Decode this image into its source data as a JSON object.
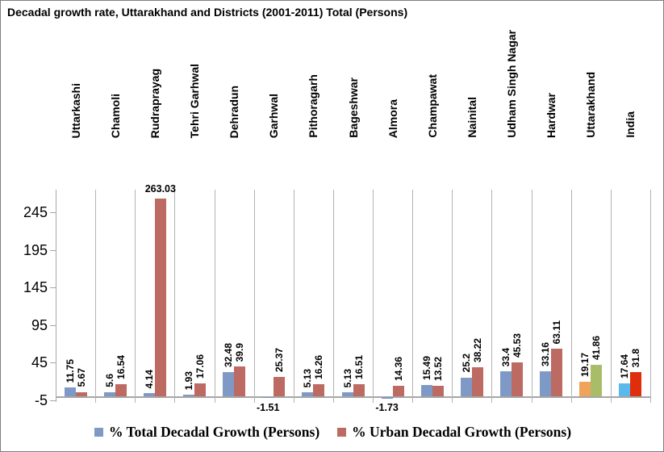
{
  "title": "Decadal growth rate, Uttarakhand and Districts (2001-2011) Total (Persons)",
  "chart_data": {
    "type": "bar",
    "title": "Decadal growth rate, Uttarakhand and Districts (2001-2011) Total (Persons)",
    "categories": [
      "Uttarkashi",
      "Chamoli",
      "Rudraprayag",
      "Tehri Garhwal",
      "Dehradun",
      "Garhwal",
      "Pithoragarh",
      "Bageshwar",
      "Almora",
      "Champawat",
      "Nainital",
      "Udham Singh Nagar",
      "Hardwar",
      "Uttarakhand",
      "India"
    ],
    "series": [
      {
        "name": "% Total Decadal Growth (Persons)",
        "color": "#7e99c6",
        "values": [
          11.75,
          5.6,
          4.14,
          1.93,
          32.48,
          -1.51,
          5.13,
          5.13,
          -1.73,
          15.49,
          25.2,
          33.4,
          33.16,
          19.17,
          17.64
        ]
      },
      {
        "name": "% Urban Decadal Growth (Persons)",
        "color": "#bc6a62",
        "values": [
          5.67,
          16.54,
          263.03,
          17.06,
          39.9,
          25.37,
          16.26,
          16.51,
          14.36,
          13.52,
          38.22,
          45.53,
          63.11,
          41.86,
          31.8
        ]
      }
    ],
    "point_colors": {
      "13": [
        "#f2a35b",
        "#a9bd68"
      ],
      "14": [
        "#5bb8ec",
        "#e02d0c"
      ]
    },
    "y_ticks": [
      -5,
      45,
      95,
      145,
      195,
      245
    ],
    "ylim": [
      -5,
      275
    ],
    "xlabel": "",
    "ylabel": "",
    "grid": "vertical-category-lines",
    "legend_position": "bottom",
    "data_labels": "shown, rotated vertical; negative and >100 values horizontal"
  },
  "colors": {
    "gridline": "#b3b3b3",
    "axis": "#a6a6a6",
    "border": "#7f7f7f",
    "background": "#ffffff"
  }
}
